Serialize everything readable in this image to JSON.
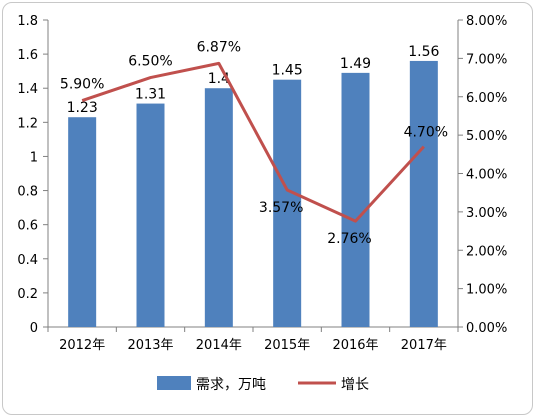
{
  "chart_data": {
    "type": "bar",
    "categories": [
      "2012年",
      "2013年",
      "2014年",
      "2015年",
      "2016年",
      "2017年"
    ],
    "series": [
      {
        "name": "需求，万吨",
        "type": "bar",
        "axis": "left",
        "color": "#4f81bd",
        "values": [
          1.23,
          1.31,
          1.4,
          1.45,
          1.49,
          1.56
        ],
        "labels": [
          "1.23",
          "1.31",
          "1.4",
          "1.45",
          "1.49",
          "1.56"
        ]
      },
      {
        "name": "增长",
        "type": "line",
        "axis": "right",
        "color": "#c0504d",
        "values": [
          5.9,
          6.5,
          6.87,
          3.57,
          2.76,
          4.7
        ],
        "labels": [
          "5.90%",
          "6.50%",
          "6.87%",
          "3.57%",
          "2.76%",
          "4.70%"
        ]
      }
    ],
    "y_left": {
      "ylim": [
        0,
        1.8
      ],
      "ticks": [
        "0",
        "0.2",
        "0.4",
        "0.6",
        "0.8",
        "1",
        "1.2",
        "1.4",
        "1.6",
        "1.8"
      ]
    },
    "y_right": {
      "ylim": [
        0,
        8
      ],
      "ticks": [
        "0.00%",
        "1.00%",
        "2.00%",
        "3.00%",
        "4.00%",
        "5.00%",
        "6.00%",
        "7.00%",
        "8.00%"
      ]
    },
    "title": "",
    "xlabel": "",
    "ylabel": "",
    "grid": false,
    "legend": "bottom"
  }
}
